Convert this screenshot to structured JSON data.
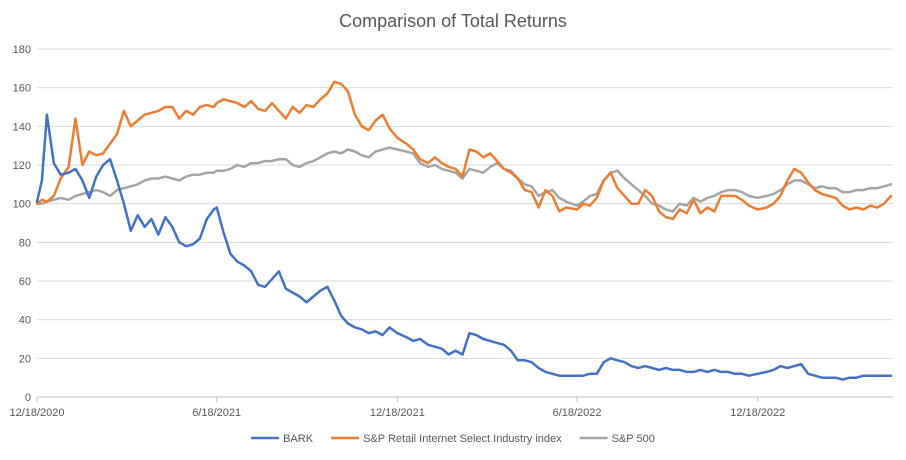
{
  "chart_data": {
    "type": "line",
    "title": "Comparison of Total Returns",
    "xlabel": "",
    "ylabel": "",
    "ylim": [
      0,
      180
    ],
    "yticks": [
      0,
      20,
      40,
      60,
      80,
      100,
      120,
      140,
      160,
      180
    ],
    "xticks": [
      "12/18/2020",
      "6/18/2021",
      "12/18/2021",
      "6/18/2022",
      "12/18/2022"
    ],
    "grid": "horizontal",
    "legend": "bottom",
    "x_dates": [
      "2020-12-18",
      "2020-12-23",
      "2020-12-28",
      "2021-01-04",
      "2021-01-11",
      "2021-01-19",
      "2021-01-26",
      "2021-02-02",
      "2021-02-09",
      "2021-02-16",
      "2021-02-23",
      "2021-03-02",
      "2021-03-09",
      "2021-03-16",
      "2021-03-23",
      "2021-03-30",
      "2021-04-06",
      "2021-04-13",
      "2021-04-20",
      "2021-04-27",
      "2021-05-04",
      "2021-05-11",
      "2021-05-18",
      "2021-05-25",
      "2021-06-01",
      "2021-06-08",
      "2021-06-15",
      "2021-06-18",
      "2021-06-25",
      "2021-07-02",
      "2021-07-09",
      "2021-07-16",
      "2021-07-23",
      "2021-07-30",
      "2021-08-06",
      "2021-08-13",
      "2021-08-20",
      "2021-08-27",
      "2021-09-03",
      "2021-09-10",
      "2021-09-17",
      "2021-09-24",
      "2021-10-01",
      "2021-10-08",
      "2021-10-15",
      "2021-10-22",
      "2021-10-29",
      "2021-11-05",
      "2021-11-12",
      "2021-11-19",
      "2021-11-26",
      "2021-12-03",
      "2021-12-10",
      "2021-12-18",
      "2021-12-27",
      "2022-01-03",
      "2022-01-10",
      "2022-01-18",
      "2022-01-25",
      "2022-02-01",
      "2022-02-08",
      "2022-02-15",
      "2022-02-22",
      "2022-03-01",
      "2022-03-08",
      "2022-03-15",
      "2022-03-22",
      "2022-03-29",
      "2022-04-05",
      "2022-04-12",
      "2022-04-19",
      "2022-04-26",
      "2022-05-03",
      "2022-05-10",
      "2022-05-17",
      "2022-05-24",
      "2022-05-31",
      "2022-06-07",
      "2022-06-18",
      "2022-06-24",
      "2022-07-01",
      "2022-07-08",
      "2022-07-15",
      "2022-07-22",
      "2022-07-29",
      "2022-08-05",
      "2022-08-12",
      "2022-08-19",
      "2022-08-26",
      "2022-09-02",
      "2022-09-09",
      "2022-09-16",
      "2022-09-23",
      "2022-09-30",
      "2022-10-07",
      "2022-10-14",
      "2022-10-21",
      "2022-10-28",
      "2022-11-04",
      "2022-11-11",
      "2022-11-18",
      "2022-11-25",
      "2022-12-02",
      "2022-12-09",
      "2022-12-18",
      "2022-12-27",
      "2023-01-03",
      "2023-01-10",
      "2023-01-17",
      "2023-01-24",
      "2023-01-31",
      "2023-02-07",
      "2023-02-14",
      "2023-02-21",
      "2023-02-28",
      "2023-03-07",
      "2023-03-14",
      "2023-03-21",
      "2023-03-28",
      "2023-04-04",
      "2023-04-11",
      "2023-04-18",
      "2023-04-25",
      "2023-05-02"
    ],
    "series": [
      {
        "name": "BARK",
        "color": "#4472C4",
        "values": [
          101,
          112,
          146,
          121,
          115,
          116,
          118,
          112,
          103,
          114,
          120,
          123,
          112,
          100,
          86,
          94,
          88,
          92,
          84,
          93,
          88,
          80,
          78,
          79,
          82,
          92,
          97,
          98,
          85,
          74,
          70,
          68,
          65,
          58,
          57,
          61,
          65,
          56,
          54,
          52,
          49,
          52,
          55,
          57,
          50,
          42,
          38,
          36,
          35,
          33,
          34,
          32,
          36,
          33,
          31,
          29,
          30,
          27,
          26,
          25,
          22,
          24,
          22,
          33,
          32,
          30,
          29,
          28,
          27,
          24,
          19,
          19,
          18,
          15,
          13,
          12,
          11,
          11,
          11,
          11,
          12,
          12,
          18,
          20,
          19,
          18,
          16,
          15,
          16,
          15,
          14,
          15,
          14,
          14,
          13,
          13,
          14,
          13,
          14,
          13,
          13,
          12,
          12,
          11,
          12,
          13,
          14,
          16,
          15,
          16,
          17,
          12,
          11,
          10,
          10,
          10,
          9,
          10,
          10,
          11,
          11,
          11,
          11,
          11
        ]
      },
      {
        "name": "S&P Retail Internet Select Industry index",
        "color": "#ED7D31",
        "values": [
          100,
          102,
          101,
          104,
          113,
          119,
          144,
          120,
          127,
          125,
          126,
          131,
          136,
          148,
          140,
          143,
          146,
          147,
          148,
          150,
          150,
          144,
          148,
          146,
          150,
          151,
          150,
          152,
          154,
          153,
          152,
          150,
          153,
          149,
          148,
          152,
          148,
          144,
          150,
          147,
          151,
          150,
          154,
          157,
          163,
          162,
          158,
          146,
          140,
          138,
          143,
          146,
          139,
          134,
          131,
          128,
          123,
          121,
          124,
          121,
          119,
          118,
          114,
          128,
          127,
          124,
          126,
          122,
          118,
          116,
          113,
          107,
          106,
          98,
          107,
          104,
          96,
          98,
          97,
          100,
          99,
          103,
          112,
          116,
          108,
          104,
          100,
          100,
          107,
          104,
          96,
          93,
          92,
          97,
          95,
          102,
          95,
          98,
          96,
          104,
          104,
          104,
          102,
          99,
          97,
          98,
          100,
          104,
          112,
          118,
          116,
          111,
          107,
          105,
          104,
          103,
          99,
          97,
          98,
          97,
          99,
          98,
          100,
          104
        ]
      },
      {
        "name": "S&P 500",
        "color": "#A5A5A5",
        "values": [
          100,
          100,
          101,
          102,
          103,
          102,
          104,
          105,
          106,
          107,
          106,
          104,
          107,
          108,
          109,
          110,
          112,
          113,
          113,
          114,
          113,
          112,
          114,
          115,
          115,
          116,
          116,
          117,
          117,
          118,
          120,
          119,
          121,
          121,
          122,
          122,
          123,
          123,
          120,
          119,
          121,
          122,
          124,
          126,
          127,
          126,
          128,
          127,
          125,
          124,
          127,
          128,
          129,
          128,
          127,
          126,
          121,
          119,
          120,
          118,
          117,
          116,
          113,
          118,
          117,
          116,
          119,
          121,
          118,
          117,
          113,
          110,
          109,
          104,
          106,
          107,
          103,
          101,
          99,
          101,
          104,
          105,
          112,
          116,
          117,
          113,
          110,
          107,
          104,
          100,
          99,
          97,
          96,
          100,
          99,
          103,
          101,
          103,
          104,
          106,
          107,
          107,
          106,
          104,
          103,
          104,
          105,
          107,
          110,
          112,
          112,
          110,
          108,
          109,
          108,
          108,
          106,
          106,
          107,
          107,
          108,
          108,
          109,
          110
        ]
      }
    ]
  }
}
